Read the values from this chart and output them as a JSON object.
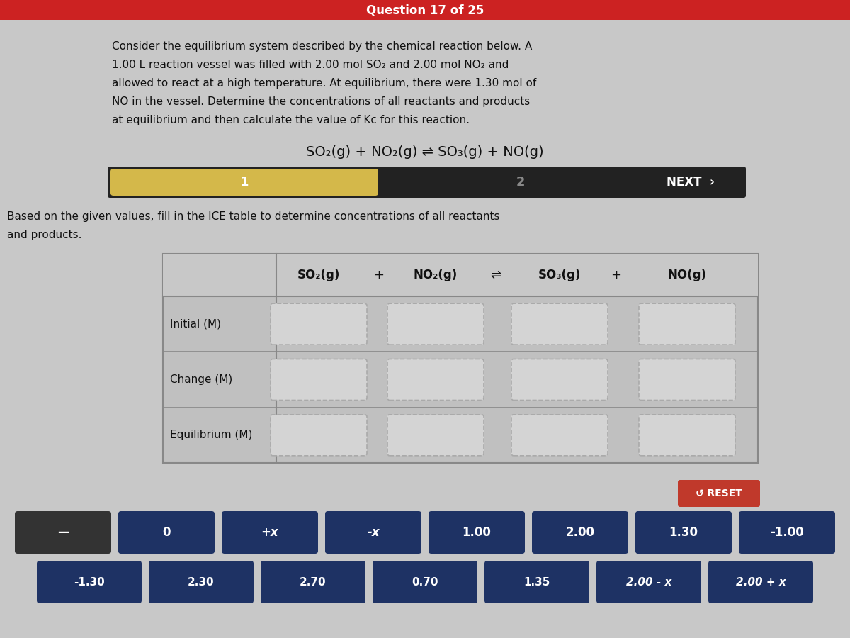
{
  "bg_color": "#c8c8c8",
  "header_bar_color": "#cc2222",
  "header_text": "Question 17 of 25",
  "problem_text_lines": [
    "Consider the equilibrium system described by the chemical reaction below. A",
    "1.00 L reaction vessel was filled with 2.00 mol SO₂ and 2.00 mol NO₂ and",
    "allowed to react at a high temperature. At equilibrium, there were 1.30 mol of",
    "NO in the vessel. Determine the concentrations of all reactants and products",
    "at equilibrium and then calculate the value of Kc for this reaction."
  ],
  "equation": "SO₂(g) + NO₂(g) ⇌ SO₃(g) + NO(g)",
  "nav_bar_color": "#222222",
  "nav_step1_color": "#d4b84a",
  "nav_step1_label": "1",
  "nav_step2_label": "2",
  "nav_next_label": "NEXT  ›",
  "instruction_text_line1": "Based on the given values, fill in the ICE table to determine concentrations of all reactants",
  "instruction_text_line2": "and products.",
  "table_header_cols": [
    "SO₂(g)",
    "+",
    "NO₂(g)",
    "⇌",
    "SO₃(g)",
    "+",
    "NO(g)"
  ],
  "table_rows": [
    "Initial (M)",
    "Change (M)",
    "Equilibrium (M)"
  ],
  "reset_button_color": "#c0392b",
  "reset_button_text": "↺ RESET",
  "answer_buttons_row1": [
    "—",
    "0",
    "+x",
    "-x",
    "1.00",
    "2.00",
    "1.30",
    "-1.00"
  ],
  "answer_buttons_row2": [
    "-1.30",
    "2.30",
    "2.70",
    "0.70",
    "1.35",
    "2.00 - x",
    "2.00 + x"
  ],
  "answer_btn_color": "#1e3264",
  "answer_btn_text_color": "#ffffff",
  "dark_btn_color": "#333333",
  "cell_bg": "#d8d8d8",
  "cell_border": "#aaaaaa",
  "table_outer_bg": "#b8b8b8",
  "table_inner_bg": "#d0d0d0"
}
